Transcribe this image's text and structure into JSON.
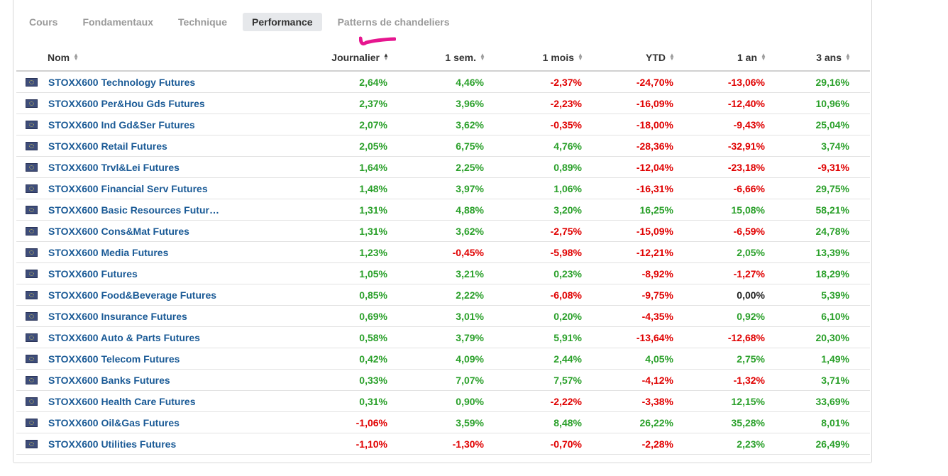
{
  "tabs": [
    {
      "label": "Cours",
      "active": false
    },
    {
      "label": "Fondamentaux",
      "active": false
    },
    {
      "label": "Technique",
      "active": false
    },
    {
      "label": "Performance",
      "active": true
    },
    {
      "label": "Patterns de chandeliers",
      "active": false
    }
  ],
  "colors": {
    "positive": "#2aa02a",
    "negative": "#e00000",
    "link": "#1a5a96",
    "annotation": "#e6168f"
  },
  "columns": [
    "Nom",
    "Journalier",
    "1 sem.",
    "1 mois",
    "YTD",
    "1 an",
    "3 ans"
  ],
  "rows": [
    {
      "name": "STOXX600 Technology Futures",
      "values": [
        "2,64%",
        "4,46%",
        "-2,37%",
        "-24,70%",
        "-13,06%",
        "29,16%"
      ]
    },
    {
      "name": "STOXX600 Per&Hou Gds Futures",
      "values": [
        "2,37%",
        "3,96%",
        "-2,23%",
        "-16,09%",
        "-12,40%",
        "10,96%"
      ]
    },
    {
      "name": "STOXX600 Ind Gd&Ser Futures",
      "values": [
        "2,07%",
        "3,62%",
        "-0,35%",
        "-18,00%",
        "-9,43%",
        "25,04%"
      ]
    },
    {
      "name": "STOXX600 Retail Futures",
      "values": [
        "2,05%",
        "6,75%",
        "4,76%",
        "-28,36%",
        "-32,91%",
        "3,74%"
      ]
    },
    {
      "name": "STOXX600 Trvl&Lei Futures",
      "values": [
        "1,64%",
        "2,25%",
        "0,89%",
        "-12,04%",
        "-23,18%",
        "-9,31%"
      ]
    },
    {
      "name": "STOXX600 Financial Serv Futures",
      "values": [
        "1,48%",
        "3,97%",
        "1,06%",
        "-16,31%",
        "-6,66%",
        "29,75%"
      ]
    },
    {
      "name": "STOXX600 Basic Resources Futur…",
      "values": [
        "1,31%",
        "4,88%",
        "3,20%",
        "16,25%",
        "15,08%",
        "58,21%"
      ]
    },
    {
      "name": "STOXX600 Cons&Mat Futures",
      "values": [
        "1,31%",
        "3,62%",
        "-2,75%",
        "-15,09%",
        "-6,59%",
        "24,78%"
      ]
    },
    {
      "name": "STOXX600 Media Futures",
      "values": [
        "1,23%",
        "-0,45%",
        "-5,98%",
        "-12,21%",
        "2,05%",
        "13,39%"
      ]
    },
    {
      "name": "STOXX600 Futures",
      "values": [
        "1,05%",
        "3,21%",
        "0,23%",
        "-8,92%",
        "-1,27%",
        "18,29%"
      ]
    },
    {
      "name": "STOXX600 Food&Beverage Futures",
      "values": [
        "0,85%",
        "2,22%",
        "-6,08%",
        "-9,75%",
        "0,00%",
        "5,39%"
      ]
    },
    {
      "name": "STOXX600 Insurance Futures",
      "values": [
        "0,69%",
        "3,01%",
        "0,20%",
        "-4,35%",
        "0,92%",
        "6,10%"
      ]
    },
    {
      "name": "STOXX600 Auto & Parts Futures",
      "values": [
        "0,58%",
        "3,79%",
        "5,91%",
        "-13,64%",
        "-12,68%",
        "20,30%"
      ]
    },
    {
      "name": "STOXX600 Telecom Futures",
      "values": [
        "0,42%",
        "4,09%",
        "2,44%",
        "4,05%",
        "2,75%",
        "1,49%"
      ]
    },
    {
      "name": "STOXX600 Banks Futures",
      "values": [
        "0,33%",
        "7,07%",
        "7,57%",
        "-4,12%",
        "-1,32%",
        "3,71%"
      ]
    },
    {
      "name": "STOXX600 Health Care Futures",
      "values": [
        "0,31%",
        "0,90%",
        "-2,22%",
        "-3,38%",
        "12,15%",
        "33,69%"
      ]
    },
    {
      "name": "STOXX600 Oil&Gas Futures",
      "values": [
        "-1,06%",
        "3,59%",
        "8,48%",
        "26,22%",
        "35,28%",
        "8,01%"
      ]
    },
    {
      "name": "STOXX600 Utilities Futures",
      "values": [
        "-1,10%",
        "-1,30%",
        "-0,70%",
        "-2,28%",
        "2,23%",
        "26,49%"
      ]
    }
  ]
}
